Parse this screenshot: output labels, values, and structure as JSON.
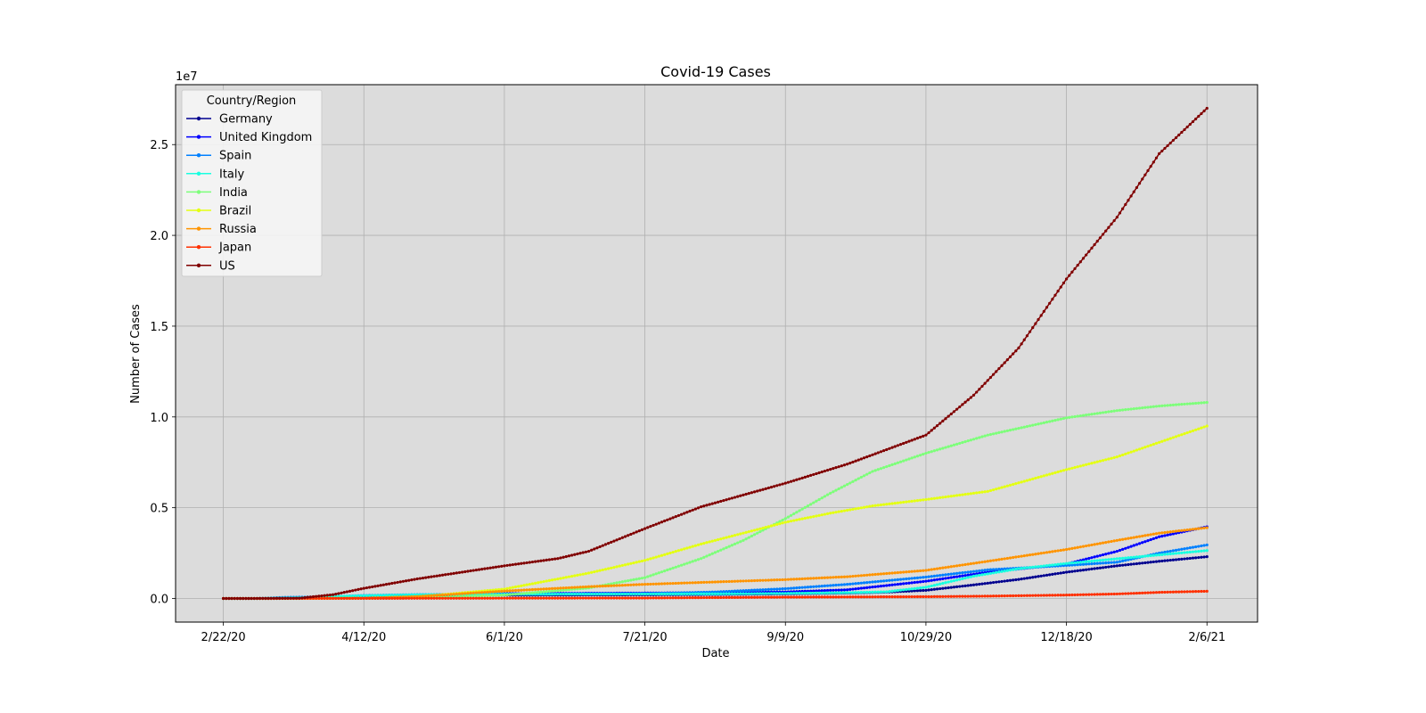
{
  "chart_data": {
    "type": "line",
    "title": "Covid-19 Cases",
    "xlabel": "Date",
    "ylabel": "Number of Cases",
    "offset_label": "1e7",
    "x_range": [
      "2020-02-22",
      "2021-02-06"
    ],
    "xlim": [
      "2020-02-05",
      "2021-02-24"
    ],
    "x_ticks": [
      {
        "date": "2020-02-22",
        "label": "2/22/20"
      },
      {
        "date": "2020-04-12",
        "label": "4/12/20"
      },
      {
        "date": "2020-06-01",
        "label": "6/1/20"
      },
      {
        "date": "2020-07-21",
        "label": "7/21/20"
      },
      {
        "date": "2020-09-09",
        "label": "9/9/20"
      },
      {
        "date": "2020-10-29",
        "label": "10/29/20"
      },
      {
        "date": "2020-12-18",
        "label": "12/18/20"
      },
      {
        "date": "2021-02-06",
        "label": "2/6/21"
      }
    ],
    "ylim": [
      -0.13,
      2.83
    ],
    "y_ticks": [
      {
        "value": 0.0,
        "label": "0.0"
      },
      {
        "value": 0.5,
        "label": "0.5"
      },
      {
        "value": 1.0,
        "label": "1.0"
      },
      {
        "value": 1.5,
        "label": "1.5"
      },
      {
        "value": 2.0,
        "label": "2.0"
      },
      {
        "value": 2.5,
        "label": "2.5"
      }
    ],
    "grid": true,
    "legend": {
      "title": "Country/Region",
      "position": "upper left"
    },
    "plot_background": "#dcdcdc",
    "series": [
      {
        "name": "Germany",
        "color": "#00008f",
        "points": [
          [
            "2020-02-22",
            0
          ],
          [
            "2020-03-10",
            0.0001
          ],
          [
            "2020-03-20",
            0.002
          ],
          [
            "2020-04-01",
            0.007
          ],
          [
            "2020-04-12",
            0.0125
          ],
          [
            "2020-05-01",
            0.0163
          ],
          [
            "2020-06-01",
            0.0183
          ],
          [
            "2020-07-21",
            0.0203
          ],
          [
            "2020-08-15",
            0.0222
          ],
          [
            "2020-09-09",
            0.0255
          ],
          [
            "2020-10-01",
            0.03
          ],
          [
            "2020-10-15",
            0.035
          ],
          [
            "2020-10-29",
            0.045
          ],
          [
            "2020-11-15",
            0.075
          ],
          [
            "2020-12-01",
            0.105
          ],
          [
            "2020-12-18",
            0.145
          ],
          [
            "2021-01-05",
            0.18
          ],
          [
            "2021-01-20",
            0.205
          ],
          [
            "2021-02-06",
            0.23
          ]
        ]
      },
      {
        "name": "United Kingdom",
        "color": "#0000ff",
        "points": [
          [
            "2020-02-22",
            0
          ],
          [
            "2020-03-10",
            0.0001
          ],
          [
            "2020-03-20",
            0.0005
          ],
          [
            "2020-04-01",
            0.003
          ],
          [
            "2020-04-12",
            0.008
          ],
          [
            "2020-05-01",
            0.018
          ],
          [
            "2020-06-01",
            0.027
          ],
          [
            "2020-07-21",
            0.03
          ],
          [
            "2020-08-15",
            0.032
          ],
          [
            "2020-09-09",
            0.036
          ],
          [
            "2020-10-01",
            0.048
          ],
          [
            "2020-10-29",
            0.095
          ],
          [
            "2020-11-20",
            0.145
          ],
          [
            "2020-12-18",
            0.19
          ],
          [
            "2021-01-05",
            0.26
          ],
          [
            "2021-01-20",
            0.34
          ],
          [
            "2021-02-06",
            0.395
          ]
        ]
      },
      {
        "name": "Spain",
        "color": "#0080ff",
        "points": [
          [
            "2020-02-22",
            0
          ],
          [
            "2020-03-05",
            0.0002
          ],
          [
            "2020-03-15",
            0.0063
          ],
          [
            "2020-04-01",
            0.01
          ],
          [
            "2020-04-12",
            0.0166
          ],
          [
            "2020-05-01",
            0.0215
          ],
          [
            "2020-06-01",
            0.024
          ],
          [
            "2020-07-21",
            0.0265
          ],
          [
            "2020-08-15",
            0.036
          ],
          [
            "2020-09-09",
            0.054
          ],
          [
            "2020-10-01",
            0.078
          ],
          [
            "2020-10-29",
            0.118
          ],
          [
            "2020-11-20",
            0.158
          ],
          [
            "2020-12-18",
            0.182
          ],
          [
            "2021-01-05",
            0.2
          ],
          [
            "2021-01-20",
            0.25
          ],
          [
            "2021-02-06",
            0.295
          ]
        ]
      },
      {
        "name": "Italy",
        "color": "#18ffe0",
        "points": [
          [
            "2020-02-22",
            6e-05
          ],
          [
            "2020-03-05",
            0.0004
          ],
          [
            "2020-03-20",
            0.0047
          ],
          [
            "2020-04-01",
            0.011
          ],
          [
            "2020-04-12",
            0.0152
          ],
          [
            "2020-05-01",
            0.0205
          ],
          [
            "2020-06-01",
            0.0233
          ],
          [
            "2020-07-21",
            0.0245
          ],
          [
            "2020-08-15",
            0.0253
          ],
          [
            "2020-09-09",
            0.0281
          ],
          [
            "2020-10-01",
            0.032
          ],
          [
            "2020-10-15",
            0.037
          ],
          [
            "2020-10-29",
            0.062
          ],
          [
            "2020-11-15",
            0.123
          ],
          [
            "2020-12-01",
            0.164
          ],
          [
            "2020-12-18",
            0.193
          ],
          [
            "2021-01-05",
            0.219
          ],
          [
            "2021-01-20",
            0.24
          ],
          [
            "2021-02-06",
            0.264
          ]
        ]
      },
      {
        "name": "India",
        "color": "#7dff7a",
        "points": [
          [
            "2020-02-22",
            0
          ],
          [
            "2020-03-20",
            0.0002
          ],
          [
            "2020-04-12",
            0.0009
          ],
          [
            "2020-05-01",
            0.0035
          ],
          [
            "2020-06-01",
            0.019
          ],
          [
            "2020-07-01",
            0.058
          ],
          [
            "2020-07-21",
            0.115
          ],
          [
            "2020-08-10",
            0.22
          ],
          [
            "2020-08-25",
            0.32
          ],
          [
            "2020-09-09",
            0.44
          ],
          [
            "2020-09-25",
            0.58
          ],
          [
            "2020-10-10",
            0.7
          ],
          [
            "2020-10-29",
            0.8
          ],
          [
            "2020-11-20",
            0.9
          ],
          [
            "2020-12-18",
            0.995
          ],
          [
            "2021-01-05",
            1.035
          ],
          [
            "2021-01-20",
            1.06
          ],
          [
            "2021-02-06",
            1.08
          ]
        ]
      },
      {
        "name": "Brazil",
        "color": "#e4ff13",
        "points": [
          [
            "2020-02-22",
            0
          ],
          [
            "2020-03-20",
            0.0004
          ],
          [
            "2020-04-12",
            0.0022
          ],
          [
            "2020-05-01",
            0.009
          ],
          [
            "2020-06-01",
            0.052
          ],
          [
            "2020-07-01",
            0.14
          ],
          [
            "2020-07-21",
            0.21
          ],
          [
            "2020-08-10",
            0.3
          ],
          [
            "2020-08-25",
            0.36
          ],
          [
            "2020-09-09",
            0.42
          ],
          [
            "2020-09-25",
            0.47
          ],
          [
            "2020-10-10",
            0.51
          ],
          [
            "2020-10-29",
            0.545
          ],
          [
            "2020-11-20",
            0.59
          ],
          [
            "2020-12-18",
            0.71
          ],
          [
            "2021-01-05",
            0.78
          ],
          [
            "2021-01-20",
            0.86
          ],
          [
            "2021-02-06",
            0.95
          ]
        ]
      },
      {
        "name": "Russia",
        "color": "#ff9400",
        "points": [
          [
            "2020-02-22",
            0
          ],
          [
            "2020-03-20",
            0.0002
          ],
          [
            "2020-04-12",
            0.0016
          ],
          [
            "2020-05-01",
            0.011
          ],
          [
            "2020-06-01",
            0.041
          ],
          [
            "2020-07-01",
            0.065
          ],
          [
            "2020-07-21",
            0.078
          ],
          [
            "2020-08-15",
            0.091
          ],
          [
            "2020-09-09",
            0.104
          ],
          [
            "2020-10-01",
            0.12
          ],
          [
            "2020-10-29",
            0.155
          ],
          [
            "2020-11-20",
            0.205
          ],
          [
            "2020-12-18",
            0.27
          ],
          [
            "2021-01-05",
            0.32
          ],
          [
            "2021-01-20",
            0.36
          ],
          [
            "2021-02-06",
            0.39
          ]
        ]
      },
      {
        "name": "Japan",
        "color": "#ff3000",
        "points": [
          [
            "2020-02-22",
            0
          ],
          [
            "2020-04-12",
            0.0007
          ],
          [
            "2020-06-01",
            0.0017
          ],
          [
            "2020-07-21",
            0.0027
          ],
          [
            "2020-09-09",
            0.0074
          ],
          [
            "2020-10-29",
            0.0099
          ],
          [
            "2020-11-20",
            0.013
          ],
          [
            "2020-12-18",
            0.019
          ],
          [
            "2021-01-05",
            0.025
          ],
          [
            "2021-01-20",
            0.034
          ],
          [
            "2021-02-06",
            0.04
          ]
        ]
      },
      {
        "name": "US",
        "color": "#800000",
        "points": [
          [
            "2020-02-22",
            0
          ],
          [
            "2020-03-01",
            0.0001
          ],
          [
            "2020-03-10",
            0.001
          ],
          [
            "2020-03-20",
            0.0019
          ],
          [
            "2020-04-01",
            0.021
          ],
          [
            "2020-04-12",
            0.056
          ],
          [
            "2020-05-01",
            0.108
          ],
          [
            "2020-06-01",
            0.18
          ],
          [
            "2020-06-20",
            0.22
          ],
          [
            "2020-07-01",
            0.26
          ],
          [
            "2020-07-21",
            0.385
          ],
          [
            "2020-08-10",
            0.505
          ],
          [
            "2020-09-09",
            0.635
          ],
          [
            "2020-10-01",
            0.74
          ],
          [
            "2020-10-29",
            0.9
          ],
          [
            "2020-11-15",
            1.12
          ],
          [
            "2020-12-01",
            1.38
          ],
          [
            "2020-12-18",
            1.76
          ],
          [
            "2021-01-05",
            2.1
          ],
          [
            "2021-01-20",
            2.45
          ],
          [
            "2021-02-06",
            2.7
          ]
        ]
      }
    ]
  }
}
